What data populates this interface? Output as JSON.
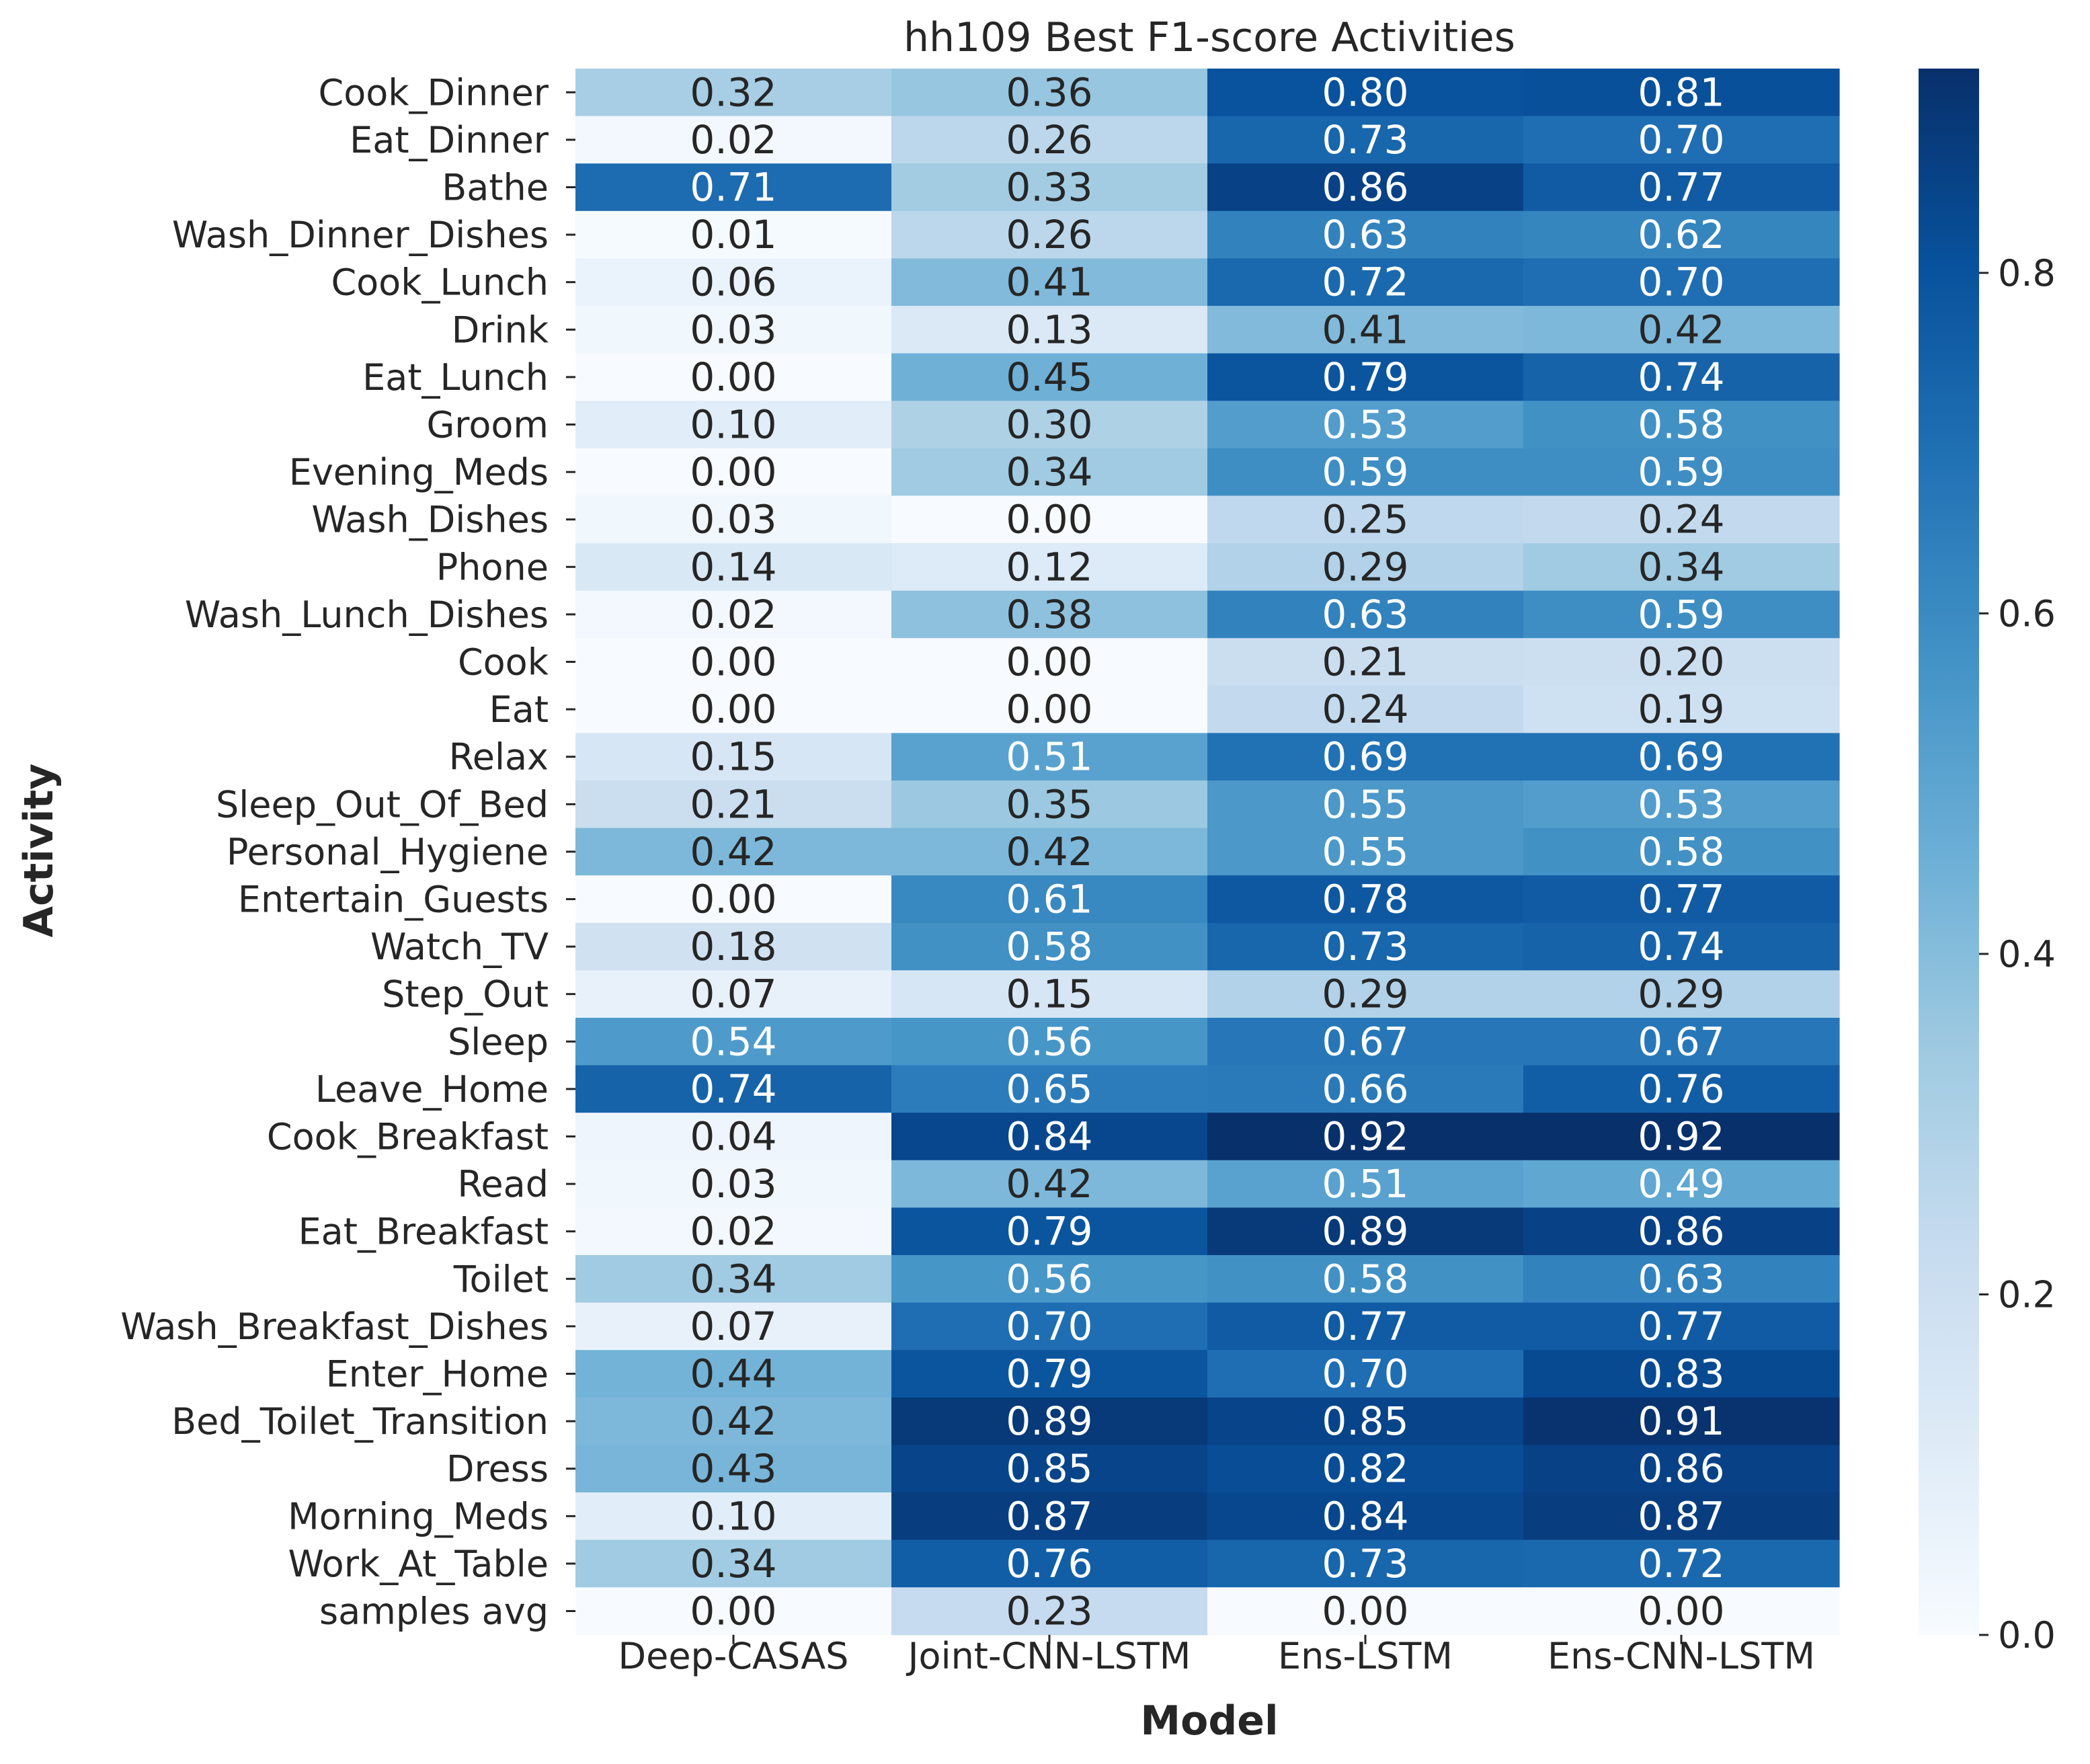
{
  "chart_data": {
    "type": "heatmap",
    "title": "hh109 Best F1-score Activities",
    "xlabel": "Model",
    "ylabel": "Activity",
    "columns": [
      "Deep-CASAS",
      "Joint-CNN-LSTM",
      "Ens-LSTM",
      "Ens-CNN-LSTM"
    ],
    "rows": [
      "Cook_Dinner",
      "Eat_Dinner",
      "Bathe",
      "Wash_Dinner_Dishes",
      "Cook_Lunch",
      "Drink",
      "Eat_Lunch",
      "Groom",
      "Evening_Meds",
      "Wash_Dishes",
      "Phone",
      "Wash_Lunch_Dishes",
      "Cook",
      "Eat",
      "Relax",
      "Sleep_Out_Of_Bed",
      "Personal_Hygiene",
      "Entertain_Guests",
      "Watch_TV",
      "Step_Out",
      "Sleep",
      "Leave_Home",
      "Cook_Breakfast",
      "Read",
      "Eat_Breakfast",
      "Toilet",
      "Wash_Breakfast_Dishes",
      "Enter_Home",
      "Bed_Toilet_Transition",
      "Dress",
      "Morning_Meds",
      "Work_At_Table",
      "samples avg"
    ],
    "values": [
      [
        0.32,
        0.36,
        0.8,
        0.81
      ],
      [
        0.02,
        0.26,
        0.73,
        0.7
      ],
      [
        0.71,
        0.33,
        0.86,
        0.77
      ],
      [
        0.01,
        0.26,
        0.63,
        0.62
      ],
      [
        0.06,
        0.41,
        0.72,
        0.7
      ],
      [
        0.03,
        0.13,
        0.41,
        0.42
      ],
      [
        0.0,
        0.45,
        0.79,
        0.74
      ],
      [
        0.1,
        0.3,
        0.53,
        0.58
      ],
      [
        0.0,
        0.34,
        0.59,
        0.59
      ],
      [
        0.03,
        0.0,
        0.25,
        0.24
      ],
      [
        0.14,
        0.12,
        0.29,
        0.34
      ],
      [
        0.02,
        0.38,
        0.63,
        0.59
      ],
      [
        0.0,
        0.0,
        0.21,
        0.2
      ],
      [
        0.0,
        0.0,
        0.24,
        0.19
      ],
      [
        0.15,
        0.51,
        0.69,
        0.69
      ],
      [
        0.21,
        0.35,
        0.55,
        0.53
      ],
      [
        0.42,
        0.42,
        0.55,
        0.58
      ],
      [
        0.0,
        0.61,
        0.78,
        0.77
      ],
      [
        0.18,
        0.58,
        0.73,
        0.74
      ],
      [
        0.07,
        0.15,
        0.29,
        0.29
      ],
      [
        0.54,
        0.56,
        0.67,
        0.67
      ],
      [
        0.74,
        0.65,
        0.66,
        0.76
      ],
      [
        0.04,
        0.84,
        0.92,
        0.92
      ],
      [
        0.03,
        0.42,
        0.51,
        0.49
      ],
      [
        0.02,
        0.79,
        0.89,
        0.86
      ],
      [
        0.34,
        0.56,
        0.58,
        0.63
      ],
      [
        0.07,
        0.7,
        0.77,
        0.77
      ],
      [
        0.44,
        0.79,
        0.7,
        0.83
      ],
      [
        0.42,
        0.89,
        0.85,
        0.91
      ],
      [
        0.43,
        0.85,
        0.82,
        0.86
      ],
      [
        0.1,
        0.87,
        0.84,
        0.87
      ],
      [
        0.34,
        0.76,
        0.73,
        0.72
      ],
      [
        0.0,
        0.23,
        0.0,
        0.0
      ]
    ],
    "value_format": "2 decimals",
    "colormap": "Blues",
    "color_range": [
      0.0,
      0.92
    ],
    "colorbar_ticks": [
      "0.0",
      "0.2",
      "0.4",
      "0.6",
      "0.8"
    ],
    "colorbar_tick_values": [
      0.0,
      0.2,
      0.4,
      0.6,
      0.8
    ],
    "grid": false
  }
}
